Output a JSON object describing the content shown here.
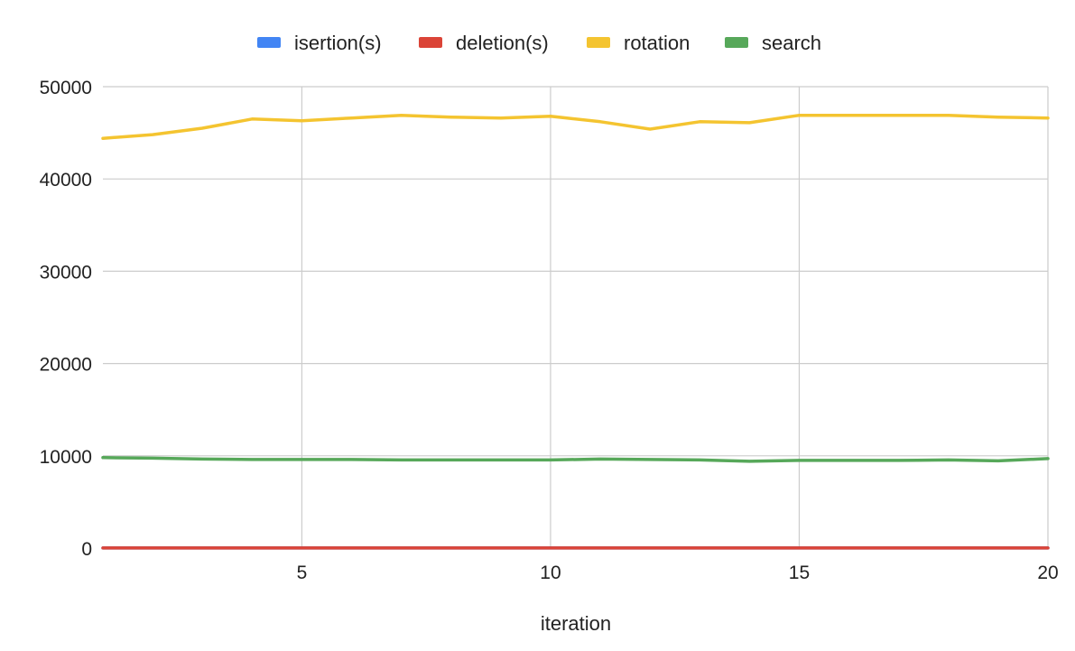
{
  "chart_data": {
    "type": "line",
    "title": "",
    "xlabel": "iteration",
    "ylabel": "",
    "x": [
      1,
      2,
      3,
      4,
      5,
      6,
      7,
      8,
      9,
      10,
      11,
      12,
      13,
      14,
      15,
      16,
      17,
      18,
      19,
      20
    ],
    "xlim": [
      1,
      20
    ],
    "ylim": [
      0,
      50000
    ],
    "x_ticks": [
      "5",
      "10",
      "15",
      "20"
    ],
    "y_ticks": [
      "0",
      "10000",
      "20000",
      "30000",
      "40000",
      "50000"
    ],
    "grid": true,
    "legend_position": "top",
    "series": [
      {
        "name": "isertion(s)",
        "color": "#4285f4",
        "values": [
          10,
          10,
          10,
          10,
          10,
          10,
          10,
          10,
          10,
          10,
          10,
          10,
          10,
          10,
          10,
          10,
          10,
          10,
          10,
          10
        ]
      },
      {
        "name": "deletion(s)",
        "color": "#db4437",
        "values": [
          10,
          10,
          10,
          10,
          10,
          10,
          10,
          10,
          10,
          10,
          10,
          10,
          10,
          10,
          10,
          10,
          10,
          10,
          10,
          10
        ]
      },
      {
        "name": "rotation",
        "color": "#f4c430",
        "values": [
          44400,
          44800,
          45500,
          46500,
          46300,
          46600,
          46900,
          46700,
          46600,
          46800,
          46200,
          45400,
          46200,
          46100,
          46900,
          46900,
          46900,
          46900,
          46700,
          46600
        ]
      },
      {
        "name": "search",
        "color": "#57a85a",
        "values": [
          9800,
          9750,
          9650,
          9600,
          9600,
          9600,
          9550,
          9550,
          9550,
          9550,
          9650,
          9600,
          9550,
          9400,
          9500,
          9500,
          9500,
          9550,
          9450,
          9700
        ]
      }
    ]
  }
}
